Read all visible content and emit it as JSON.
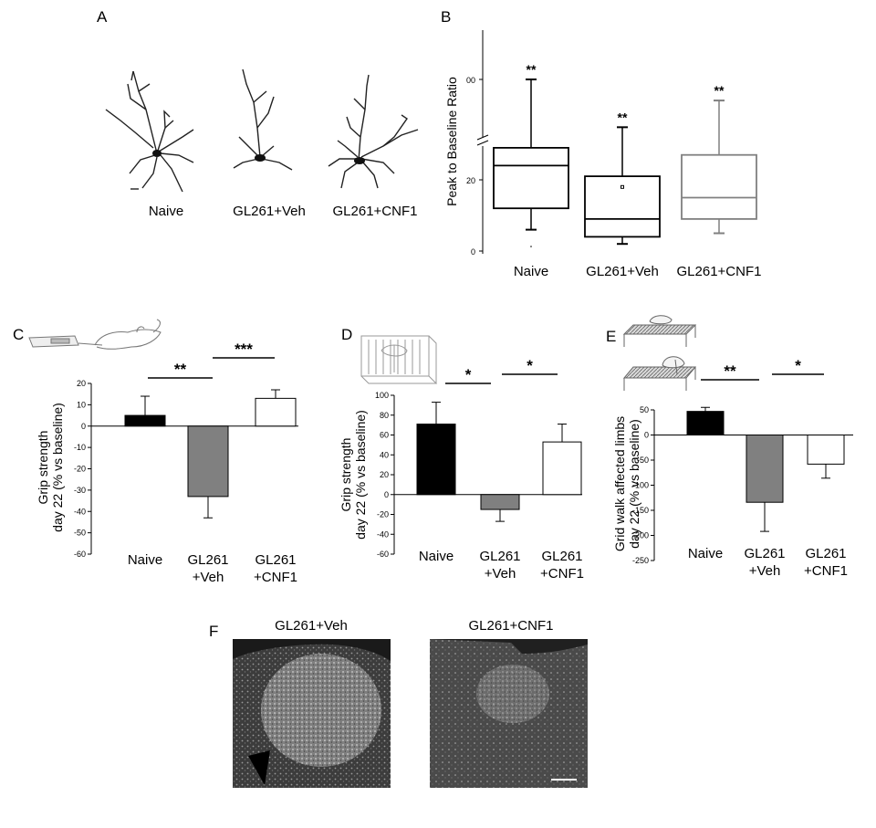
{
  "panels": {
    "A": {
      "letter": "A",
      "labels": [
        "Naive",
        "GL261+Veh",
        "GL261+CNF1"
      ]
    },
    "F": {
      "letter": "F",
      "titles": [
        "GL261+Veh",
        "GL261+CNF1"
      ]
    }
  },
  "chart_data": [
    {
      "id": "B",
      "letter": "B",
      "type": "box",
      "ylabel": "Peak to Baseline Ratio",
      "broken_axis": true,
      "yticks": [
        "0",
        "20",
        "00"
      ],
      "categories": [
        "Naive",
        "GL261+Veh",
        "GL261+CNF1"
      ],
      "boxes": [
        {
          "min": 6,
          "q1": 12,
          "median": 24,
          "q3": 29,
          "max": 100,
          "outlier": 0,
          "sig": "**",
          "color": "#000000"
        },
        {
          "min": 2,
          "q1": 4,
          "median": 9,
          "q3": 21,
          "max": 32,
          "mean": 18,
          "sig": "**",
          "color": "#000000"
        },
        {
          "min": 5,
          "q1": 9,
          "median": 15,
          "q3": 27,
          "max": 70,
          "sig": "**",
          "color": "#808080"
        }
      ]
    },
    {
      "id": "C",
      "letter": "C",
      "type": "bar",
      "ylabel": [
        "Grip strength",
        "day 22 (% vs baseline)"
      ],
      "ylim": [
        -60,
        20
      ],
      "yticks": [
        20,
        10,
        0,
        -10,
        -20,
        -30,
        -40,
        -50,
        -60
      ],
      "categories": [
        [
          "Naive"
        ],
        [
          "GL261",
          "+Veh"
        ],
        [
          "GL261",
          "+CNF1"
        ]
      ],
      "values": [
        5,
        -33,
        13
      ],
      "errors": [
        9,
        10,
        4
      ],
      "colors": [
        "#000000",
        "#808080",
        "#ffffff"
      ],
      "sig": [
        {
          "from": 0,
          "to": 1,
          "label": "**"
        },
        {
          "from": 1,
          "to": 2,
          "label": "***"
        }
      ]
    },
    {
      "id": "D",
      "letter": "D",
      "type": "bar",
      "ylabel": [
        "Grip strength",
        "day 22 (% vs baseline)"
      ],
      "ylim": [
        -60,
        100
      ],
      "yticks": [
        100,
        80,
        60,
        40,
        20,
        0,
        -20,
        -40,
        -60
      ],
      "categories": [
        [
          "Naive"
        ],
        [
          "GL261",
          "+Veh"
        ],
        [
          "GL261",
          "+CNF1"
        ]
      ],
      "values": [
        71,
        -15,
        53
      ],
      "errors": [
        22,
        12,
        18
      ],
      "colors": [
        "#000000",
        "#808080",
        "#ffffff"
      ],
      "sig": [
        {
          "from": 0,
          "to": 1,
          "label": "*"
        },
        {
          "from": 1,
          "to": 2,
          "label": "*"
        }
      ]
    },
    {
      "id": "E",
      "letter": "E",
      "type": "bar",
      "ylabel": [
        "Grid walk affected limbs",
        "day 22 (% vs baseline)"
      ],
      "ylim": [
        -250,
        50
      ],
      "yticks": [
        50,
        0,
        -50,
        -100,
        -150,
        -200,
        -250
      ],
      "categories": [
        [
          "Naive"
        ],
        [
          "GL261",
          "+Veh"
        ],
        [
          "GL261",
          "+CNF1"
        ]
      ],
      "values": [
        47,
        -134,
        -58
      ],
      "errors": [
        8,
        58,
        28
      ],
      "colors": [
        "#000000",
        "#808080",
        "#ffffff"
      ],
      "sig": [
        {
          "from": 0,
          "to": 1,
          "label": "**"
        },
        {
          "from": 1,
          "to": 2,
          "label": "*"
        }
      ]
    }
  ]
}
